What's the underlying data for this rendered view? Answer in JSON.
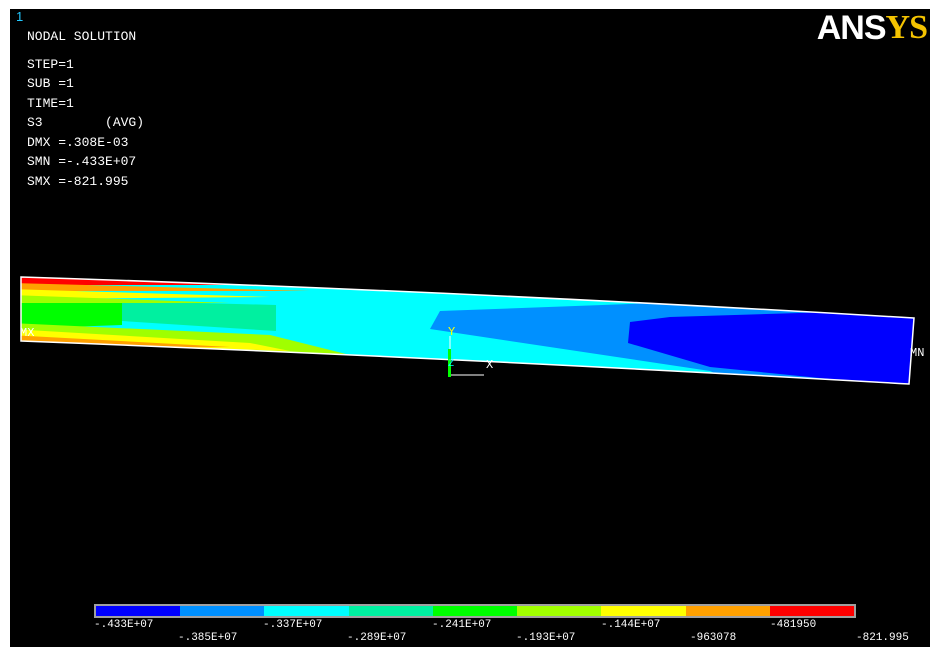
{
  "window_number": "1",
  "logo": {
    "part1": "ANS",
    "part2": "YS"
  },
  "info": {
    "title": "NODAL SOLUTION",
    "lines": [
      "STEP=1",
      "SUB =1",
      "TIME=1",
      "S3        (AVG)",
      "DMX =.308E-03",
      "SMN =-.433E+07",
      "SMX =-821.995"
    ]
  },
  "markers": {
    "mx": "MX",
    "mn": "MN"
  },
  "triad": {
    "x": "X",
    "y": "Y",
    "z": "Z"
  },
  "legend": {
    "colors": [
      "#0000ff",
      "#0090ff",
      "#00ffff",
      "#00f0a0",
      "#00ff00",
      "#a0ff00",
      "#ffff00",
      "#ffa000",
      "#ff0000"
    ],
    "top_labels": [
      "-.433E+07",
      "-.337E+07",
      "-.241E+07",
      "-.144E+07",
      "-481950"
    ],
    "bottom_labels": [
      "-.385E+07",
      "-.289E+07",
      "-.193E+07",
      "-963078",
      "-821.995"
    ]
  }
}
